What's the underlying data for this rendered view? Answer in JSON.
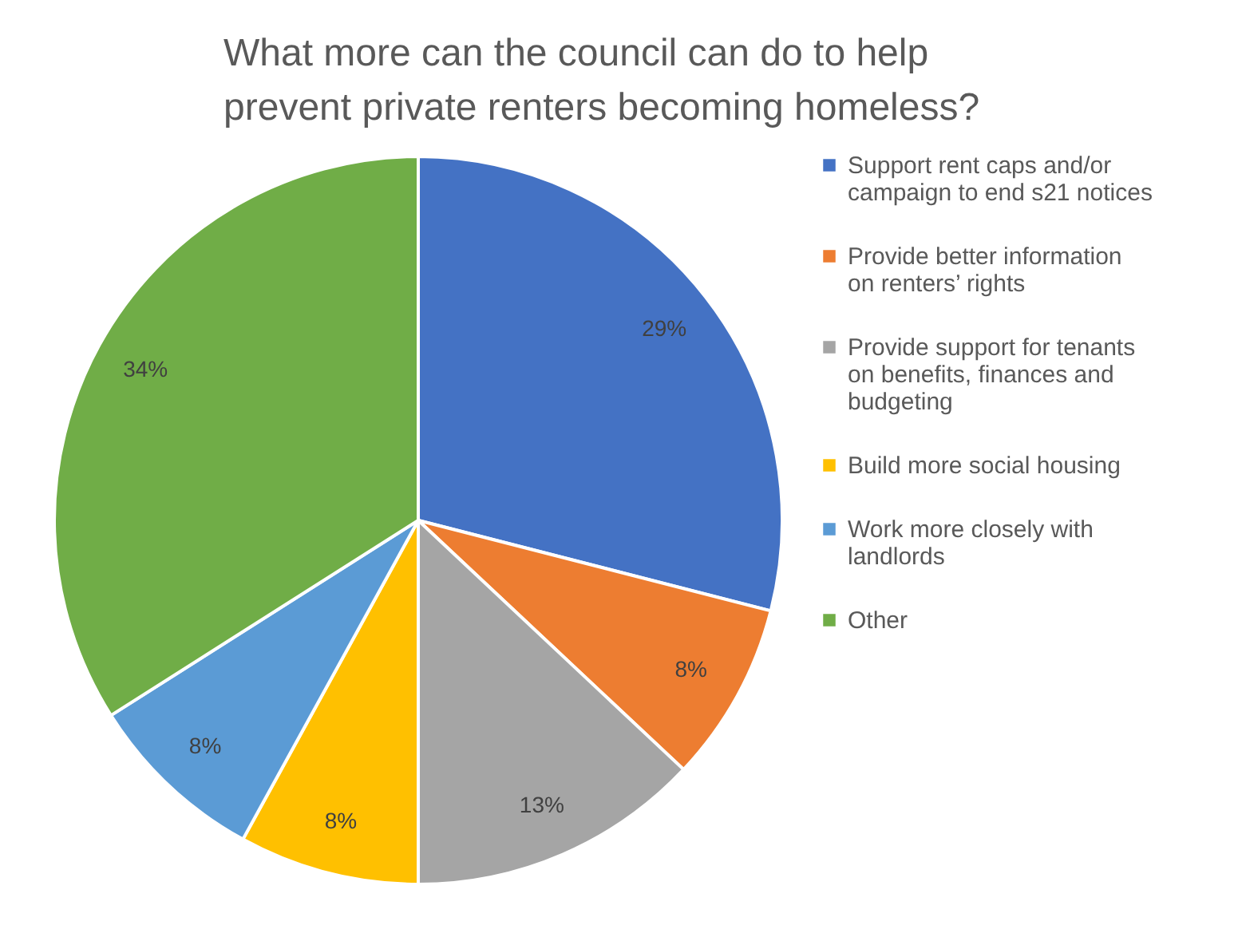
{
  "chart_data": {
    "type": "pie",
    "title": "What more can the council can do to help prevent private renters becoming homeless?",
    "categories": [
      "Support rent caps and/or campaign to end s21 notices",
      "Provide better information on renters’ rights",
      "Provide support for tenants on benefits, finances and budgeting",
      "Build more social housing",
      "Work more closely with landlords",
      "Other"
    ],
    "values": [
      29,
      8,
      13,
      8,
      8,
      34
    ],
    "value_labels": [
      "29%",
      "8%",
      "13%",
      "8%",
      "8%",
      "34%"
    ],
    "colors": [
      "#4472c4",
      "#ed7d31",
      "#a5a5a5",
      "#ffc000",
      "#5b9bd5",
      "#70ad47"
    ],
    "legend": "right"
  }
}
